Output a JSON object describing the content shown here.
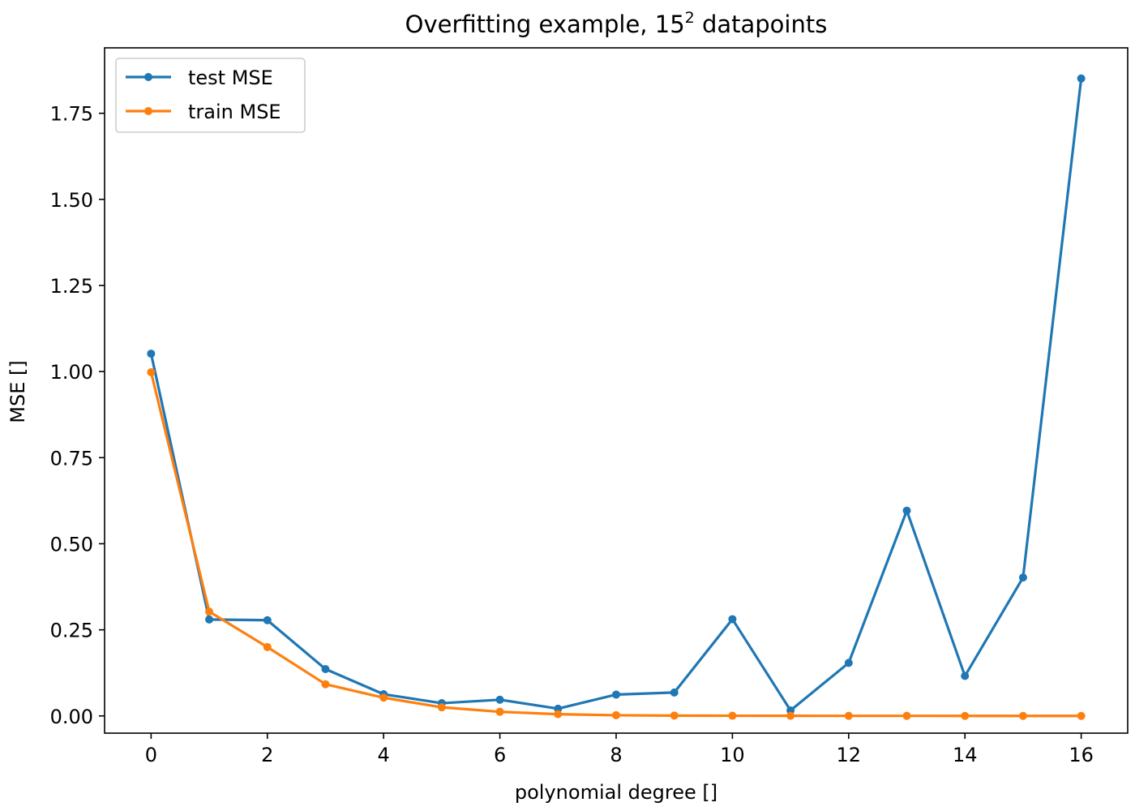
{
  "chart_data": {
    "type": "line",
    "title": "Overfitting example, 15",
    "title_superscript": "2",
    "title_suffix": " datapoints",
    "xlabel": "polynomial degree []",
    "ylabel": "MSE []",
    "xlim": [
      -0.8,
      16.8
    ],
    "ylim": [
      -0.05,
      1.94
    ],
    "xticks": [
      0,
      2,
      4,
      6,
      8,
      10,
      12,
      14,
      16
    ],
    "yticks": [
      0.0,
      0.25,
      0.5,
      0.75,
      1.0,
      1.25,
      1.5,
      1.75
    ],
    "grid": false,
    "legend_position": "top-left",
    "x": [
      0,
      1,
      2,
      3,
      4,
      5,
      6,
      7,
      8,
      9,
      10,
      11,
      12,
      13,
      14,
      15,
      16
    ],
    "series": [
      {
        "name": "test MSE",
        "color": "#1f77b4",
        "values": [
          1.052,
          0.28,
          0.278,
          0.136,
          0.063,
          0.037,
          0.047,
          0.021,
          0.062,
          0.068,
          0.281,
          0.016,
          0.154,
          0.596,
          0.116,
          0.402,
          1.851
        ]
      },
      {
        "name": "train MSE",
        "color": "#ff7f0e",
        "values": [
          0.998,
          0.303,
          0.2,
          0.092,
          0.053,
          0.025,
          0.012,
          0.005,
          0.002,
          0.001,
          0.0005,
          0.0003,
          0.0002,
          0.0002,
          0.0001,
          0.0001,
          0.0001
        ]
      }
    ]
  }
}
